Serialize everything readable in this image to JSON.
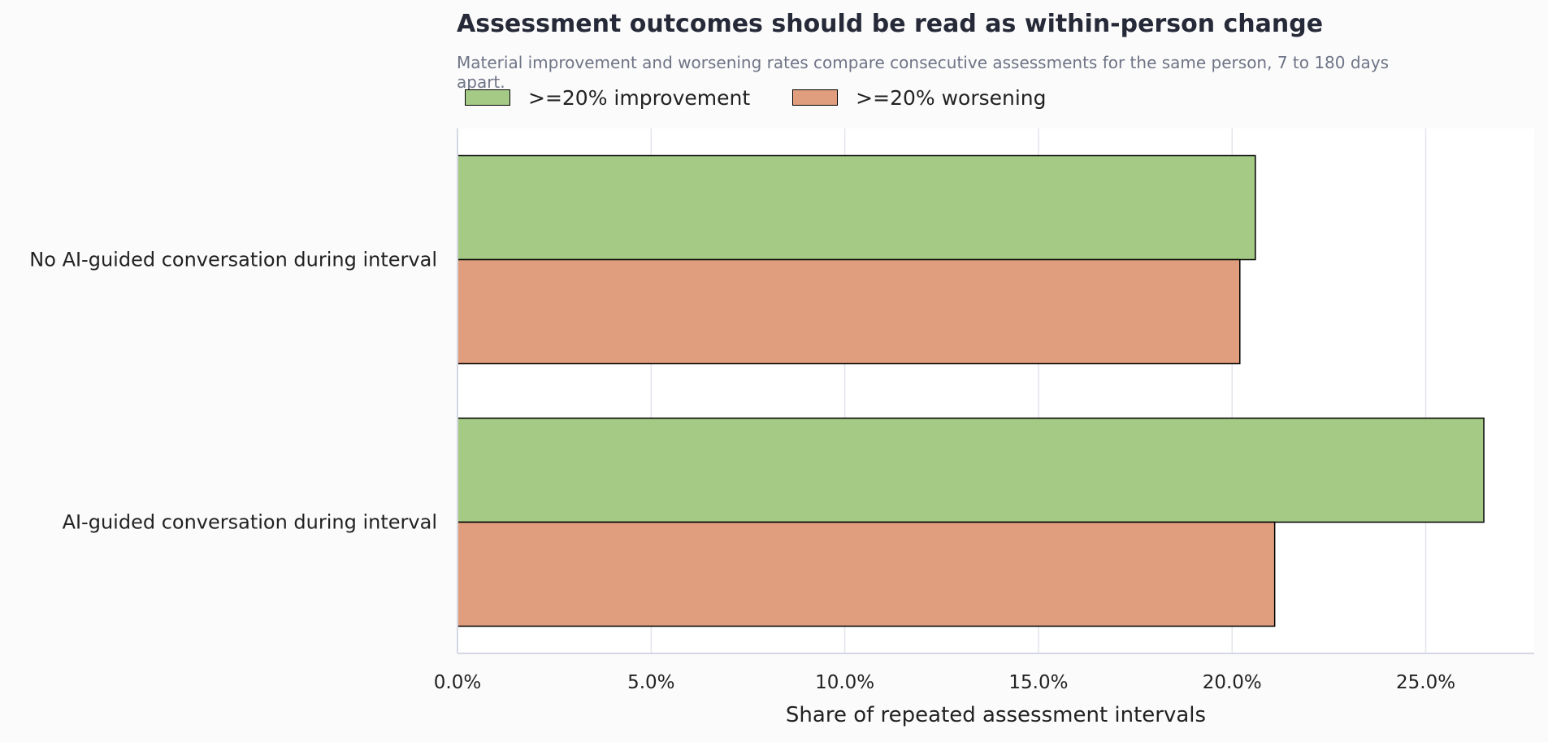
{
  "title": "Assessment outcomes should be read as within-person change",
  "subtitle": "Material improvement and worsening rates compare consecutive assessments for the same person, 7 to 180 days apart.",
  "colors": {
    "improvement": "#a5ca85",
    "worsening": "#e09e7e",
    "grid": "#e3e4ec",
    "axis": "#d5d7e2",
    "plot_bg": "#ffffff"
  },
  "chart_data": {
    "type": "bar",
    "orientation": "horizontal",
    "title": "Assessment outcomes should be read as within-person change",
    "subtitle": "Material improvement and worsening rates compare consecutive assessments for the same person, 7 to 180 days apart.",
    "xlabel": "Share of repeated assessment intervals",
    "ylabel": "",
    "categories": [
      "No AI-guided conversation during interval",
      "AI-guided conversation during interval"
    ],
    "series": [
      {
        "name": ">=20% improvement",
        "values": [
          20.6,
          26.5
        ],
        "color": "#a5ca85"
      },
      {
        "name": ">=20% worsening",
        "values": [
          20.2,
          21.1
        ],
        "color": "#e09e7e"
      }
    ],
    "xlim": [
      0,
      27.8
    ],
    "xticks": [
      0,
      5,
      10,
      15,
      20,
      25
    ],
    "xtick_labels": [
      "0.0%",
      "5.0%",
      "10.0%",
      "15.0%",
      "20.0%",
      "25.0%"
    ],
    "grid": true,
    "legend_position": "top-left"
  }
}
